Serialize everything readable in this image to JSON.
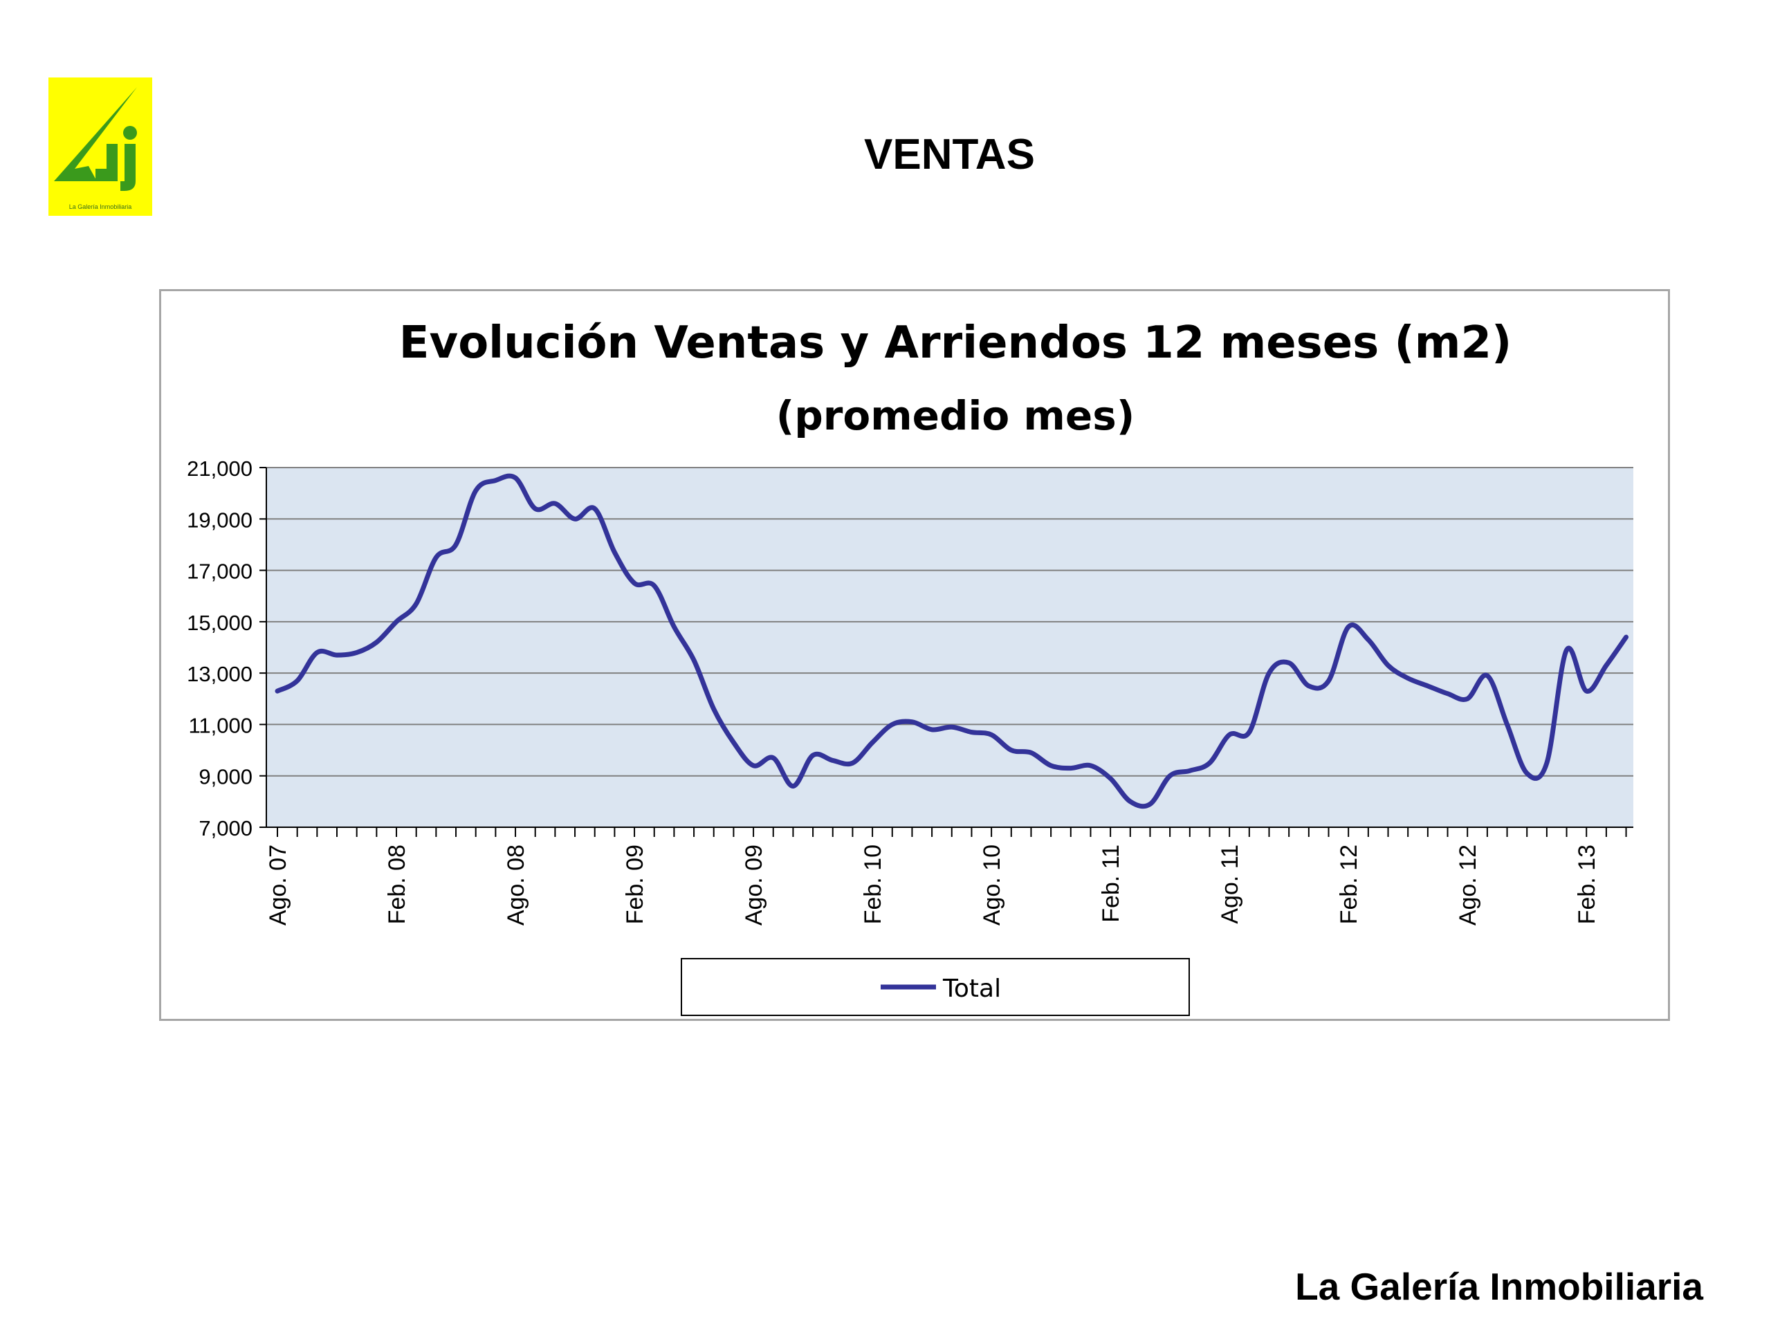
{
  "slide": {
    "title": "VENTAS",
    "footer": "La Galería Inmobiliaria",
    "logo_caption": "La Galería Inmobiliaria"
  },
  "colors": {
    "logo_bg": "#ffff00",
    "logo_green": "#3a9a1c",
    "plot_bg": "#dbe5f1",
    "line": "#333399",
    "grid": "#808080"
  },
  "chart_data": {
    "type": "line",
    "title": "Evolución Ventas y Arriendos 12 meses (m2)",
    "subtitle": "(promedio mes)",
    "ylim": [
      7000,
      21000
    ],
    "yticks": [
      7000,
      9000,
      11000,
      13000,
      15000,
      17000,
      19000,
      21000
    ],
    "ytick_labels": [
      "7,000",
      "9,000",
      "11,000",
      "13,000",
      "15,000",
      "17,000",
      "19,000",
      "21,000"
    ],
    "grid": true,
    "legend": "bottom-center",
    "x_labels": [
      "Ago. 07",
      "Feb. 08",
      "Ago. 08",
      "Feb. 09",
      "Ago. 09",
      "Feb. 10",
      "Ago. 10",
      "Feb. 11",
      "Ago. 11",
      "Feb. 12",
      "Ago. 12",
      "Feb. 13"
    ],
    "series": [
      {
        "name": "Total",
        "x": [
          "Ago. 07",
          "Sep. 07",
          "Oct. 07",
          "Nov. 07",
          "Dic. 07",
          "Ene. 08",
          "Feb. 08",
          "Mar. 08",
          "Abr. 08",
          "May. 08",
          "Jun. 08",
          "Jul. 08",
          "Ago. 08",
          "Sep. 08",
          "Oct. 08",
          "Nov. 08",
          "Dic. 08",
          "Ene. 09",
          "Feb. 09",
          "Mar. 09",
          "Abr. 09",
          "May. 09",
          "Jun. 09",
          "Jul. 09",
          "Ago. 09",
          "Sep. 09",
          "Oct. 09",
          "Nov. 09",
          "Dic. 09",
          "Ene. 10",
          "Feb. 10",
          "Mar. 10",
          "Abr. 10",
          "May. 10",
          "Jun. 10",
          "Jul. 10",
          "Ago. 10",
          "Sep. 10",
          "Oct. 10",
          "Nov. 10",
          "Dic. 10",
          "Ene. 11",
          "Feb. 11",
          "Mar. 11",
          "Abr. 11",
          "May. 11",
          "Jun. 11",
          "Jul. 11",
          "Ago. 11",
          "Sep. 11",
          "Oct. 11",
          "Nov. 11",
          "Dic. 11",
          "Ene. 12",
          "Feb. 12",
          "Mar. 12",
          "Abr. 12",
          "May. 12",
          "Jun. 12",
          "Jul. 12",
          "Ago. 12",
          "Sep. 12",
          "Oct. 12",
          "Nov. 12",
          "Dic. 12",
          "Ene. 13",
          "Feb. 13",
          "Mar. 13",
          "Abr. 13"
        ],
        "values": [
          12300,
          12700,
          13800,
          13700,
          13800,
          14200,
          15000,
          15700,
          17500,
          18000,
          20100,
          20500,
          20600,
          19400,
          19600,
          19000,
          19400,
          17700,
          16500,
          16400,
          14800,
          13500,
          11600,
          10300,
          9400,
          9700,
          8600,
          9800,
          9600,
          9500,
          10300,
          11000,
          11100,
          10800,
          10900,
          10700,
          10600,
          10000,
          9900,
          9400,
          9300,
          9400,
          8900,
          8000,
          7900,
          9000,
          9200,
          9500,
          10600,
          10700,
          13000,
          13400,
          12500,
          12700,
          14800,
          14300,
          13300,
          12800,
          12500,
          12200,
          12000,
          12900,
          11000,
          9100,
          9500,
          13900,
          12300,
          13300,
          14400
        ]
      }
    ]
  }
}
